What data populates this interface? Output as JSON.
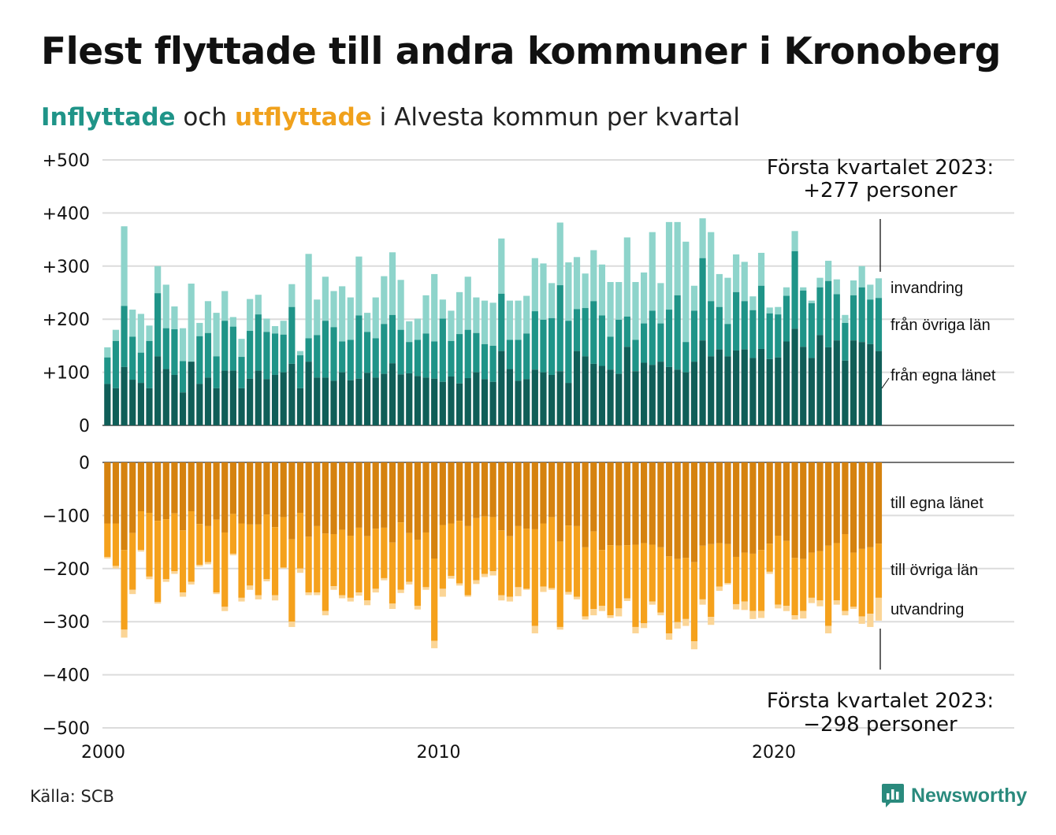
{
  "title": "Flest flyttade till andra kommuner i Kronoberg",
  "subtitle": {
    "part1": "Inflyttade",
    "part2": " och ",
    "part3": "utflyttade",
    "part4": " i Alvesta kommun per kvartal"
  },
  "source": "Källa: SCB",
  "logo_text": "Newsworthy",
  "colors": {
    "in_own": "#105e58",
    "in_other": "#1f9488",
    "in_immig": "#8ed4cb",
    "out_own": "#d5820f",
    "out_other": "#f5a11c",
    "out_emig": "#fbd596",
    "grid": "#dcdcdc",
    "brand": "#2a8a7d"
  },
  "chart_data": {
    "type": "bar",
    "stacked": true,
    "x_start": "2000 Q1",
    "x_label_ticks": [
      "2000",
      "2010",
      "2020"
    ],
    "y_ticks_top": [
      "+500",
      "+400",
      "+300",
      "+200",
      "+100",
      "0"
    ],
    "y_ticks_bottom": [
      "0",
      "−100",
      "−200",
      "−300",
      "−400",
      "−500"
    ],
    "ylim_top": [
      0,
      500
    ],
    "ylim_bottom": [
      -500,
      0
    ],
    "top_series_labels": [
      "invandring",
      "från övriga län",
      "från egna länet"
    ],
    "bottom_series_labels": [
      "till egna länet",
      "till övriga län",
      "utvandring"
    ],
    "annotation_top": [
      "Första kvartalet 2023:",
      "+277 personer"
    ],
    "annotation_bottom": [
      "Första kvartalet 2023:",
      "−298 personer"
    ],
    "in_total": [
      147,
      180,
      375,
      218,
      210,
      188,
      300,
      265,
      224,
      183,
      267,
      193,
      234,
      212,
      253,
      204,
      163,
      238,
      246,
      201,
      187,
      197,
      266,
      140,
      323,
      237,
      280,
      253,
      262,
      241,
      318,
      212,
      241,
      281,
      326,
      274,
      196,
      201,
      245,
      285,
      237,
      216,
      251,
      280,
      241,
      235,
      231,
      352,
      235,
      235,
      244,
      315,
      305,
      268,
      382,
      307,
      317,
      286,
      330,
      303,
      270,
      270,
      354,
      270,
      288,
      364,
      268,
      383,
      383,
      346,
      263,
      390,
      364,
      285,
      278,
      322,
      308,
      243,
      325,
      222,
      223,
      260,
      366,
      260,
      235,
      278,
      310,
      275,
      208,
      273,
      300,
      265,
      277
    ],
    "in_own": [
      78,
      70,
      110,
      86,
      80,
      70,
      130,
      106,
      95,
      62,
      120,
      78,
      90,
      70,
      103,
      103,
      70,
      88,
      103,
      87,
      95,
      100,
      116,
      70,
      120,
      90,
      90,
      84,
      100,
      85,
      88,
      99,
      90,
      97,
      117,
      96,
      98,
      93,
      90,
      88,
      82,
      92,
      79,
      89,
      100,
      87,
      82,
      140,
      106,
      84,
      87,
      105,
      100,
      95,
      102,
      80,
      140,
      130,
      116,
      112,
      105,
      97,
      148,
      102,
      118,
      114,
      120,
      110,
      105,
      100,
      120,
      160,
      130,
      143,
      130,
      141,
      143,
      127,
      144,
      125,
      128,
      158,
      182,
      148,
      127,
      170,
      147,
      160,
      122,
      160,
      157,
      153,
      140
    ],
    "in_other": [
      128,
      159,
      225,
      167,
      137,
      159,
      249,
      183,
      181,
      121,
      120,
      168,
      174,
      130,
      197,
      186,
      129,
      178,
      209,
      176,
      173,
      171,
      223,
      132,
      164,
      170,
      197,
      185,
      158,
      161,
      207,
      176,
      164,
      191,
      208,
      180,
      157,
      161,
      173,
      158,
      201,
      159,
      172,
      180,
      174,
      153,
      150,
      248,
      161,
      161,
      173,
      215,
      199,
      202,
      264,
      197,
      219,
      221,
      234,
      207,
      167,
      199,
      205,
      161,
      192,
      216,
      192,
      218,
      245,
      157,
      216,
      315,
      234,
      223,
      191,
      251,
      234,
      217,
      263,
      211,
      209,
      244,
      328,
      254,
      230,
      260,
      272,
      247,
      193,
      245,
      260,
      237,
      240
    ],
    "out_total": [
      -181,
      -200,
      -330,
      -248,
      -168,
      -220,
      -266,
      -225,
      -210,
      -253,
      -230,
      -196,
      -192,
      -248,
      -280,
      -175,
      -262,
      -240,
      -258,
      -224,
      -260,
      -200,
      -310,
      -208,
      -250,
      -250,
      -288,
      -240,
      -256,
      -262,
      -251,
      -269,
      -245,
      -222,
      -276,
      -246,
      -230,
      -277,
      -240,
      -350,
      -253,
      -219,
      -232,
      -253,
      -229,
      -216,
      -213,
      -260,
      -262,
      -252,
      -240,
      -322,
      -244,
      -240,
      -315,
      -249,
      -258,
      -296,
      -288,
      -280,
      -293,
      -290,
      -261,
      -322,
      -312,
      -268,
      -288,
      -334,
      -313,
      -308,
      -352,
      -268,
      -306,
      -242,
      -230,
      -277,
      -278,
      -295,
      -293,
      -210,
      -275,
      -280,
      -296,
      -294,
      -265,
      -271,
      -322,
      -268,
      -288,
      -276,
      -304,
      -310,
      -298
    ],
    "out_own": [
      -115,
      -115,
      -165,
      -133,
      -92,
      -95,
      -110,
      -107,
      -96,
      -128,
      -92,
      -116,
      -120,
      -108,
      -132,
      -97,
      -115,
      -117,
      -117,
      -98,
      -122,
      -103,
      -145,
      -95,
      -140,
      -120,
      -134,
      -135,
      -127,
      -138,
      -123,
      -139,
      -125,
      -123,
      -151,
      -113,
      -133,
      -146,
      -132,
      -181,
      -118,
      -115,
      -110,
      -120,
      -105,
      -102,
      -103,
      -128,
      -139,
      -120,
      -125,
      -126,
      -115,
      -103,
      -149,
      -119,
      -120,
      -160,
      -130,
      -165,
      -156,
      -157,
      -156,
      -155,
      -152,
      -155,
      -160,
      -177,
      -182,
      -180,
      -188,
      -157,
      -154,
      -152,
      -154,
      -178,
      -170,
      -172,
      -165,
      -153,
      -138,
      -148,
      -180,
      -182,
      -170,
      -167,
      -157,
      -152,
      -135,
      -170,
      -163,
      -160,
      -153
    ],
    "out_other": [
      -178,
      -195,
      -315,
      -240,
      -165,
      -215,
      -263,
      -220,
      -205,
      -245,
      -225,
      -193,
      -188,
      -245,
      -272,
      -172,
      -255,
      -232,
      -250,
      -220,
      -250,
      -198,
      -300,
      -200,
      -245,
      -245,
      -280,
      -233,
      -250,
      -255,
      -245,
      -260,
      -238,
      -218,
      -266,
      -240,
      -225,
      -270,
      -235,
      -336,
      -238,
      -214,
      -228,
      -250,
      -222,
      -210,
      -205,
      -250,
      -253,
      -235,
      -238,
      -308,
      -234,
      -237,
      -310,
      -244,
      -253,
      -290,
      -276,
      -270,
      -288,
      -275,
      -256,
      -310,
      -303,
      -262,
      -283,
      -322,
      -301,
      -295,
      -337,
      -258,
      -291,
      -234,
      -227,
      -267,
      -262,
      -280,
      -280,
      -206,
      -268,
      -270,
      -288,
      -280,
      -255,
      -260,
      -308,
      -260,
      -280,
      -272,
      -290,
      -285,
      -255
    ]
  }
}
